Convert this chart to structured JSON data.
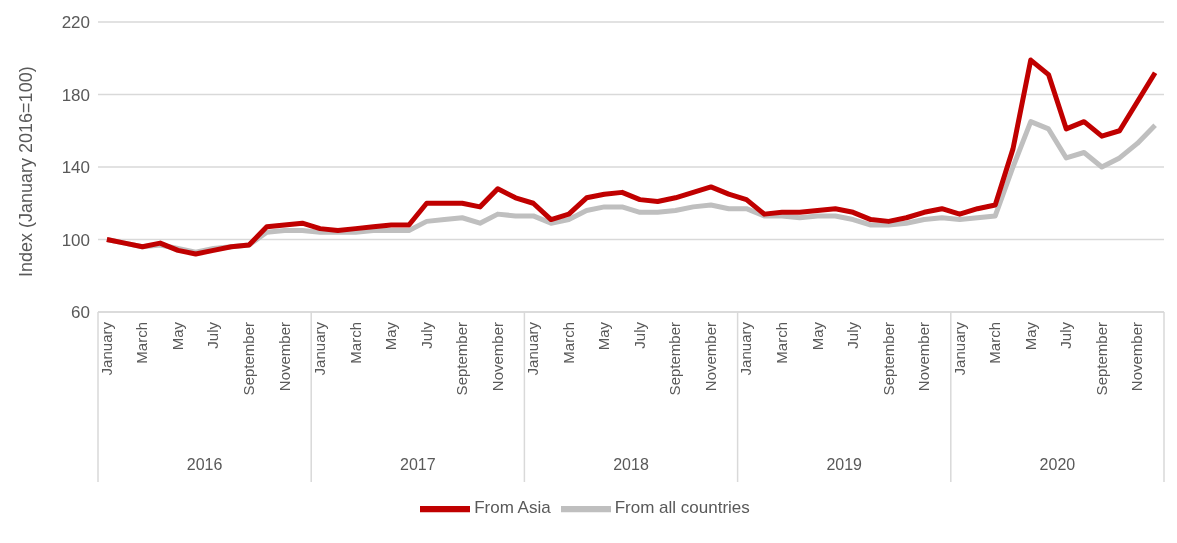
{
  "chart_data": {
    "type": "line",
    "ylabel": "Index (January 2016=100)",
    "categories": [
      "January",
      null,
      "March",
      null,
      "May",
      null,
      "July",
      null,
      "September",
      null,
      "November",
      null,
      "January",
      null,
      "March",
      null,
      "May",
      null,
      "July",
      null,
      "September",
      null,
      "November",
      null,
      "January",
      null,
      "March",
      null,
      "May",
      null,
      "July",
      null,
      "September",
      null,
      "November",
      null,
      "January",
      null,
      "March",
      null,
      "May",
      null,
      "July",
      null,
      "September",
      null,
      "November",
      null,
      "January",
      null,
      "March",
      null,
      "May",
      null,
      "July",
      null,
      "September",
      null,
      "November",
      null
    ],
    "annotations": [
      "2016",
      "2017",
      "2018",
      "2019",
      "2020"
    ],
    "series": [
      {
        "name": "From all countries",
        "color": "#bfbfbf",
        "values": [
          100,
          98,
          96,
          97,
          95,
          93,
          95,
          96,
          97,
          104,
          105,
          105,
          104,
          104,
          104,
          105,
          105,
          105,
          110,
          111,
          112,
          109,
          114,
          113,
          113,
          109,
          111,
          116,
          118,
          118,
          115,
          115,
          116,
          118,
          119,
          117,
          117,
          113,
          113,
          112,
          113,
          113,
          111,
          108,
          108,
          109,
          111,
          112,
          111,
          112,
          113,
          140,
          165,
          161,
          145,
          148,
          140,
          145,
          153,
          163
        ]
      },
      {
        "name": "From Asia",
        "color": "#c00000",
        "values": [
          100,
          98,
          96,
          98,
          94,
          92,
          94,
          96,
          97,
          107,
          108,
          109,
          106,
          105,
          106,
          107,
          108,
          108,
          120,
          120,
          120,
          118,
          128,
          123,
          120,
          111,
          114,
          123,
          125,
          126,
          122,
          121,
          123,
          126,
          129,
          125,
          122,
          114,
          115,
          115,
          116,
          117,
          115,
          111,
          110,
          112,
          115,
          117,
          114,
          117,
          119,
          150,
          199,
          191,
          161,
          165,
          157,
          160,
          176,
          192
        ]
      }
    ],
    "ylim": [
      60,
      220
    ],
    "yticks": [
      60,
      100,
      140,
      180,
      220
    ],
    "grid": "y",
    "legend": "bottom",
    "marker": "none",
    "line_style": "solid"
  }
}
